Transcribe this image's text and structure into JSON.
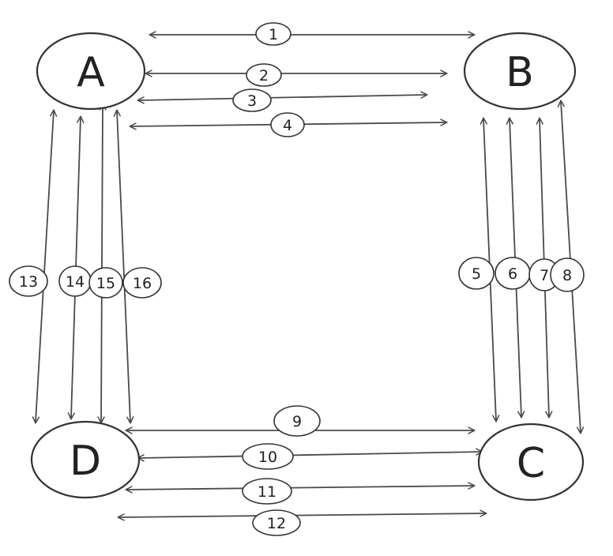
{
  "nodes": [
    {
      "id": "A",
      "label": "A"
    },
    {
      "id": "B",
      "label": "B"
    },
    {
      "id": "C",
      "label": "C"
    },
    {
      "id": "D",
      "label": "D"
    }
  ],
  "edges": [
    {
      "label": "1",
      "from": "A",
      "to": "B"
    },
    {
      "label": "2",
      "from": "A",
      "to": "B"
    },
    {
      "label": "3",
      "from": "A",
      "to": "B"
    },
    {
      "label": "4",
      "from": "A",
      "to": "B"
    },
    {
      "label": "5",
      "from": "B",
      "to": "C"
    },
    {
      "label": "6",
      "from": "B",
      "to": "C"
    },
    {
      "label": "7",
      "from": "B",
      "to": "C"
    },
    {
      "label": "8",
      "from": "B",
      "to": "C"
    },
    {
      "label": "9",
      "from": "D",
      "to": "C"
    },
    {
      "label": "10",
      "from": "D",
      "to": "C"
    },
    {
      "label": "11",
      "from": "D",
      "to": "C"
    },
    {
      "label": "12",
      "from": "D",
      "to": "C"
    },
    {
      "label": "13",
      "from": "A",
      "to": "D"
    },
    {
      "label": "14",
      "from": "A",
      "to": "D"
    },
    {
      "label": "15",
      "from": "A",
      "to": "D"
    },
    {
      "label": "16",
      "from": "A",
      "to": "D"
    }
  ],
  "colors": {
    "ink": "#333333",
    "line": "#4a4a4a",
    "background": "#ffffff"
  }
}
